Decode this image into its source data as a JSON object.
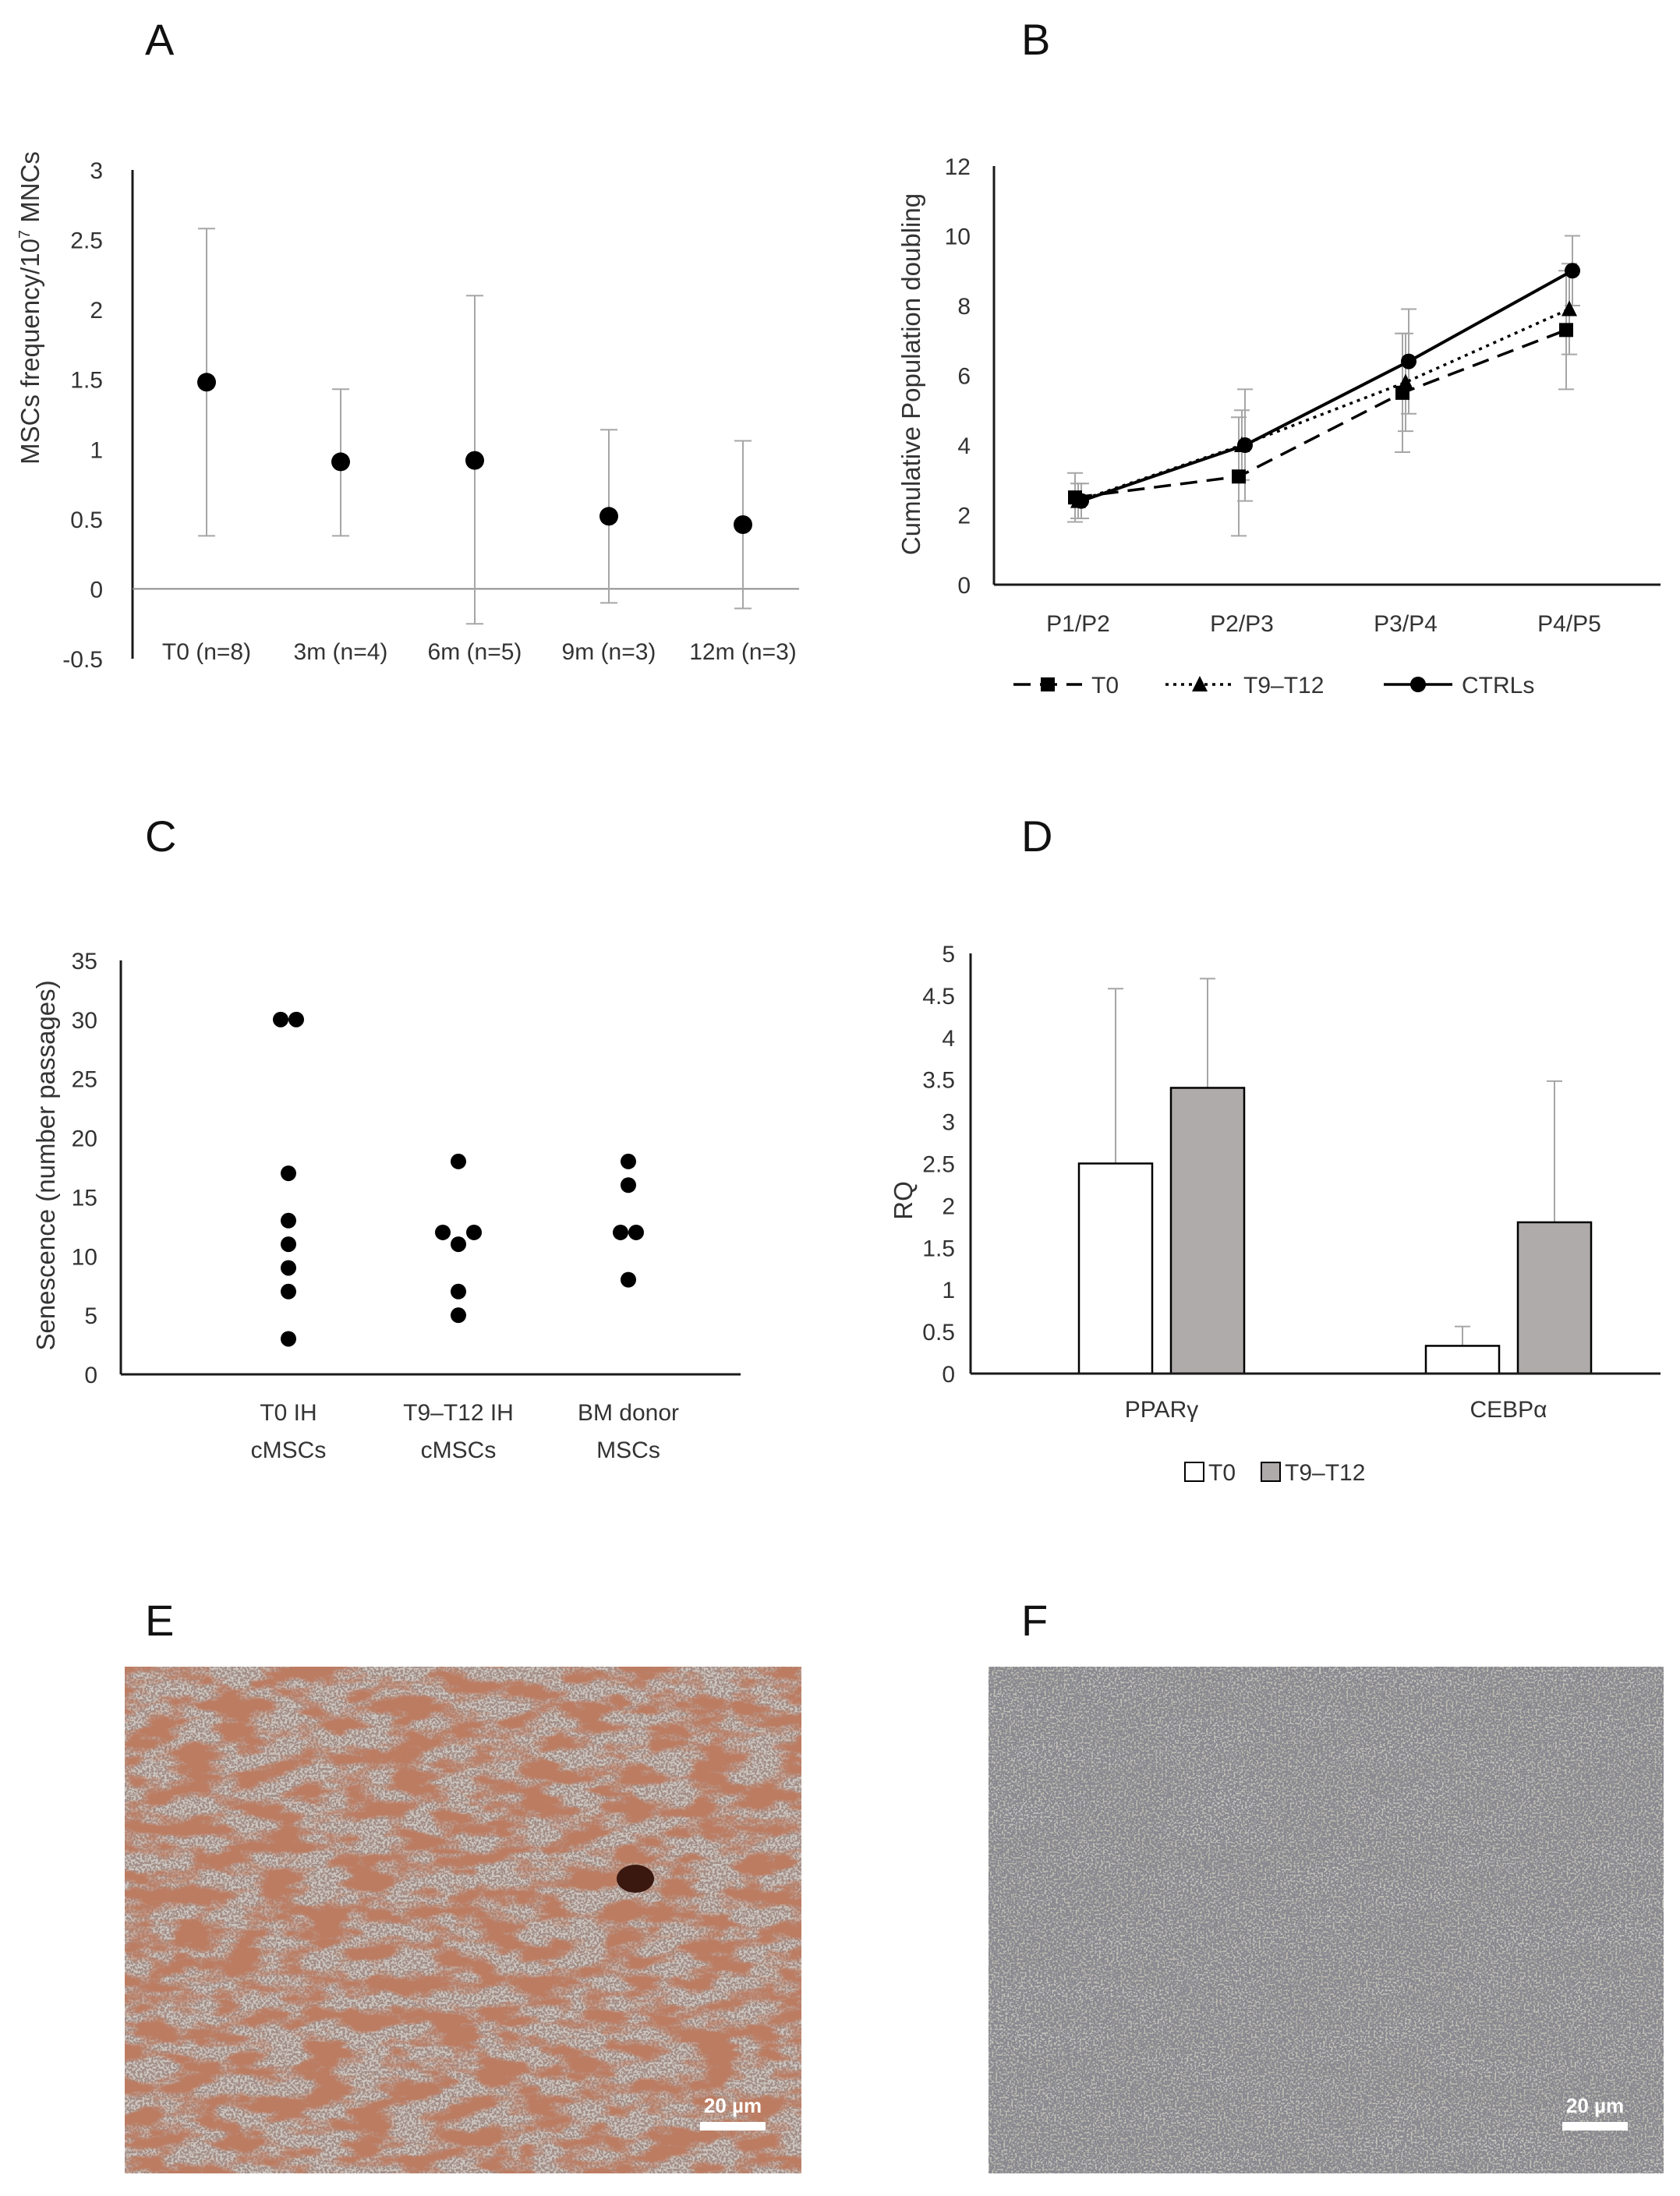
{
  "panels": {
    "A": {
      "letter": "A",
      "chart_data": {
        "type": "scatter",
        "title": "",
        "xlabel": "",
        "ylabel": "MSCs frequency/10",
        "ylabel_exponent": "7",
        "ylabel_unit": " MNCs",
        "ylim": [
          -0.5,
          3
        ],
        "yticks": [
          "3",
          "2.5",
          "2",
          "1.5",
          "1",
          "0.5",
          "0",
          "-0.5"
        ],
        "ytick_values": [
          3,
          2.5,
          2,
          1.5,
          1,
          0.5,
          0,
          -0.5
        ],
        "categories": [
          "T0 (n=8)",
          "3m (n=4)",
          "6m (n=5)",
          "9m (n=3)",
          "12m (n=3)"
        ],
        "values": [
          1.48,
          0.91,
          0.92,
          0.52,
          0.46
        ],
        "error_high": [
          2.58,
          1.43,
          2.1,
          1.14,
          1.06
        ],
        "error_low": [
          0.38,
          0.38,
          -0.25,
          -0.1,
          -0.14
        ]
      }
    },
    "B": {
      "letter": "B",
      "chart_data": {
        "type": "line",
        "title": "",
        "xlabel": "",
        "ylabel": "Cumulative Population doubling",
        "ylim": [
          0,
          12
        ],
        "yticks": [
          "12",
          "10",
          "8",
          "6",
          "4",
          "2",
          "0"
        ],
        "ytick_values": [
          12,
          10,
          8,
          6,
          4,
          2,
          0
        ],
        "categories": [
          "P1/P2",
          "P2/P3",
          "P3/P4",
          "P4/P5"
        ],
        "series": [
          {
            "name": "T0",
            "marker": "square",
            "dash": "dashed",
            "values": [
              2.5,
              3.1,
              5.5,
              7.3
            ],
            "err": [
              0.7,
              1.7,
              1.7,
              1.7
            ]
          },
          {
            "name": "T9–T12",
            "marker": "triangle",
            "dash": "dotted",
            "values": [
              2.4,
              4.0,
              5.8,
              7.9
            ],
            "err": [
              0.5,
              1.0,
              1.4,
              1.3
            ]
          },
          {
            "name": "CTRLs",
            "marker": "circle",
            "dash": "solid",
            "values": [
              2.4,
              4.0,
              6.4,
              9.0
            ],
            "err": [
              0.5,
              1.6,
              1.5,
              1.0
            ]
          }
        ],
        "legend": "bottom"
      }
    },
    "C": {
      "letter": "C",
      "chart_data": {
        "type": "scatter",
        "title": "",
        "xlabel": "",
        "ylabel": "Senescence (number passages)",
        "ylim": [
          0,
          35
        ],
        "yticks": [
          "35",
          "30",
          "25",
          "20",
          "15",
          "10",
          "5",
          "0"
        ],
        "ytick_values": [
          35,
          30,
          25,
          20,
          15,
          10,
          5,
          0
        ],
        "groups": [
          {
            "label_line1": "T0 IH",
            "label_line2": "cMSCs",
            "points": [
              {
                "offset": -0.5,
                "y": 30
              },
              {
                "offset": 0.5,
                "y": 30
              },
              {
                "offset": 0,
                "y": 17
              },
              {
                "offset": 0,
                "y": 13
              },
              {
                "offset": 0,
                "y": 11
              },
              {
                "offset": 0,
                "y": 9
              },
              {
                "offset": 0,
                "y": 7
              },
              {
                "offset": 0,
                "y": 3
              }
            ]
          },
          {
            "label_line1": "T9–T12 IH",
            "label_line2": "cMSCs",
            "points": [
              {
                "offset": 0,
                "y": 18
              },
              {
                "offset": -1,
                "y": 12
              },
              {
                "offset": 1,
                "y": 12
              },
              {
                "offset": 0,
                "y": 11
              },
              {
                "offset": 0,
                "y": 7
              },
              {
                "offset": 0,
                "y": 5
              }
            ]
          },
          {
            "label_line1": "BM donor",
            "label_line2": "MSCs",
            "points": [
              {
                "offset": 0,
                "y": 18
              },
              {
                "offset": 0,
                "y": 16
              },
              {
                "offset": -0.5,
                "y": 12
              },
              {
                "offset": 0.5,
                "y": 12
              },
              {
                "offset": 0,
                "y": 8
              }
            ]
          }
        ]
      }
    },
    "D": {
      "letter": "D",
      "chart_data": {
        "type": "bar",
        "title": "",
        "xlabel": "",
        "ylabel": "RQ",
        "ylim": [
          0,
          5
        ],
        "yticks": [
          "5",
          "4.5",
          "4",
          "3.5",
          "3",
          "2.5",
          "2",
          "1.5",
          "1",
          "0.5",
          "0"
        ],
        "ytick_values": [
          5,
          4.5,
          4,
          3.5,
          3,
          2.5,
          2,
          1.5,
          1,
          0.5,
          0
        ],
        "categories": [
          "PPARγ",
          "CEBPα"
        ],
        "series": [
          {
            "name": "T0",
            "color": "#ffffff",
            "values": [
              2.5,
              0.33
            ],
            "err_top": [
              4.58,
              0.56
            ]
          },
          {
            "name": "T9–T12",
            "color": "#afabab",
            "values": [
              3.4,
              1.8
            ],
            "err_top": [
              4.7,
              3.48
            ]
          }
        ],
        "legend": "bottom"
      }
    },
    "E": {
      "letter": "E",
      "scalebar": "20 µm",
      "image": "Oil Red O stained micrograph, dense red-brown deposits"
    },
    "F": {
      "letter": "F",
      "scalebar": "20 µm",
      "image": "Micrograph, grey cells with few deposits"
    }
  },
  "colors": {
    "ink": "#000000",
    "axis": "#1a1a1a",
    "errorbar": "#a6a6a6",
    "bar_t0": "#ffffff",
    "bar_t912": "#afabab",
    "photoE_base": "#c9c1bb",
    "photoE_stain": "#8c3b22",
    "photoF_base": "#b9b6ac"
  }
}
